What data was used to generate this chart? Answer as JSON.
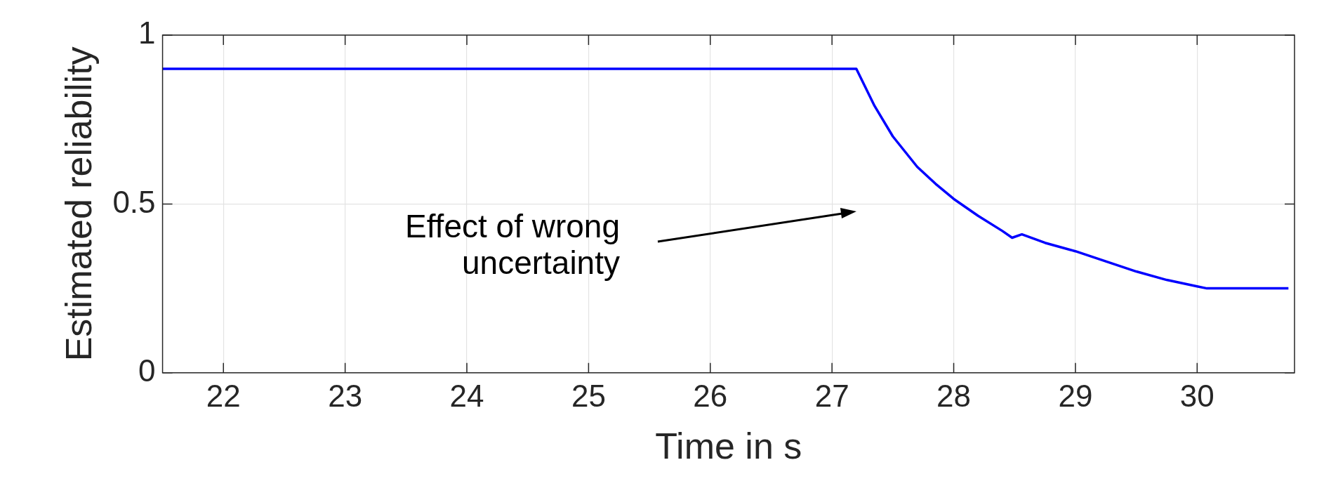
{
  "chart_data": {
    "type": "line",
    "xlabel": "Time in s",
    "ylabel": "Estimated reliability",
    "x": [
      21.5,
      27.2,
      27.35,
      27.5,
      27.7,
      27.85,
      28,
      28.2,
      28.4,
      28.48,
      28.56,
      28.75,
      29,
      29.25,
      29.5,
      29.75,
      30,
      30.08,
      30.75
    ],
    "series": [
      {
        "color": "#0000ff",
        "values": [
          0.9,
          0.9,
          0.79,
          0.7,
          0.61,
          0.56,
          0.515,
          0.465,
          0.42,
          0.4,
          0.41,
          0.385,
          0.36,
          0.33,
          0.3,
          0.275,
          0.256,
          0.25,
          0.25
        ]
      }
    ],
    "xlim": [
      21.5,
      30.8
    ],
    "xticks": [
      22,
      23,
      24,
      25,
      26,
      27,
      28,
      29,
      30
    ],
    "ylim": [
      0,
      1
    ],
    "yticks": [
      0,
      0.5,
      1
    ],
    "grid": true,
    "legend": false,
    "marker": "none",
    "line_style": "solid",
    "annotations": [
      "Effect of wrong uncertainty"
    ]
  }
}
